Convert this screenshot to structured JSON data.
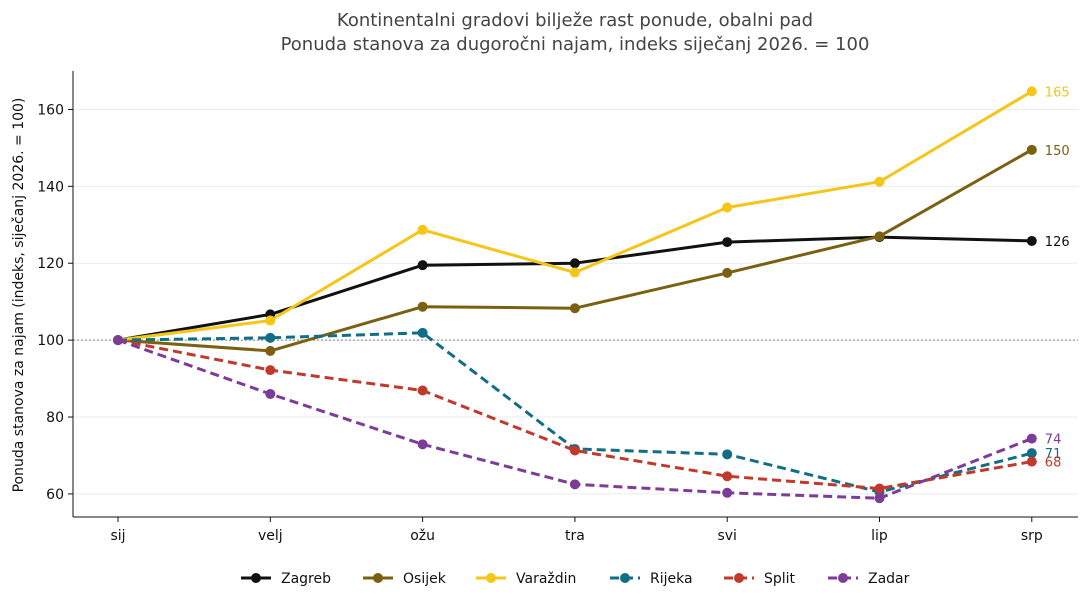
{
  "chart_data": {
    "type": "line",
    "title": "Kontinentalni gradovi bilježe rast ponude, obalni pad",
    "subtitle": "Ponuda stanova za dugoročni najam, indeks siječanj 2026. = 100",
    "xlabel": "",
    "ylabel": "Ponuda stanova za najam (indeks, siječanj 2026. = 100)",
    "categories": [
      "sij",
      "velj",
      "ožu",
      "tra",
      "svi",
      "lip",
      "srp"
    ],
    "ylim": [
      54,
      170
    ],
    "yticks": [
      60,
      80,
      100,
      120,
      140,
      160
    ],
    "reference_line": 100,
    "grid": true,
    "legend_position": "bottom",
    "series": [
      {
        "name": "Zagreb",
        "color": "#111111",
        "dashed": false,
        "values": [
          100,
          106.7,
          119.5,
          120.0,
          125.5,
          126.8,
          125.8
        ],
        "end_label": "126"
      },
      {
        "name": "Osijek",
        "color": "#7a6010",
        "dashed": false,
        "values": [
          100,
          97.2,
          108.7,
          108.3,
          117.5,
          127.0,
          149.5
        ],
        "end_label": "150"
      },
      {
        "name": "Varaždin",
        "color": "#f5c518",
        "dashed": false,
        "values": [
          100,
          105.1,
          128.7,
          117.6,
          134.5,
          141.2,
          164.7
        ],
        "end_label": "165"
      },
      {
        "name": "Rijeka",
        "color": "#116e86",
        "dashed": true,
        "values": [
          100,
          100.6,
          101.9,
          71.7,
          70.3,
          60.5,
          70.6
        ],
        "end_label": "71"
      },
      {
        "name": "Split",
        "color": "#c0392b",
        "dashed": true,
        "values": [
          100,
          92.2,
          86.9,
          71.3,
          64.6,
          61.4,
          68.4
        ],
        "end_label": "68"
      },
      {
        "name": "Zadar",
        "color": "#7d3c98",
        "dashed": true,
        "values": [
          100,
          86.0,
          72.9,
          62.5,
          60.3,
          58.9,
          74.4
        ],
        "end_label": "74"
      }
    ]
  }
}
